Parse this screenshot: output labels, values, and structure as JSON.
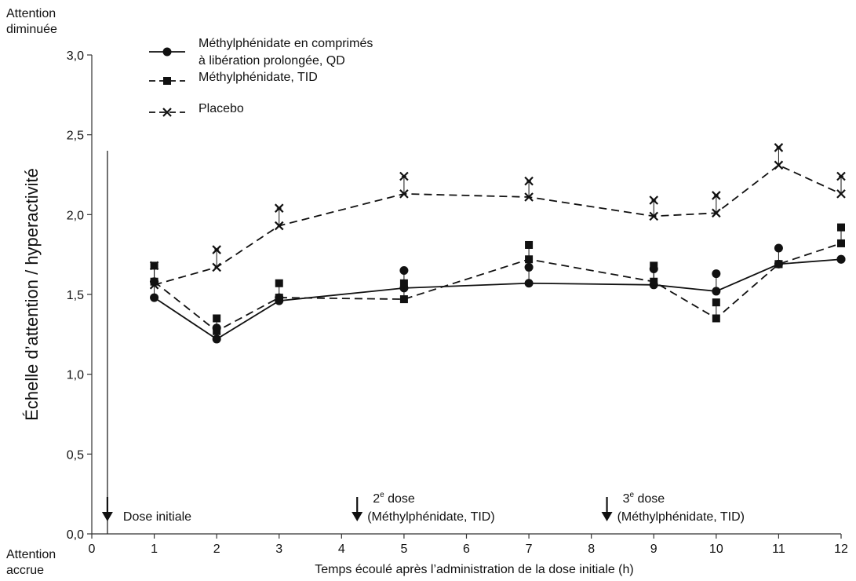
{
  "corner_labels": {
    "top": [
      "Attention",
      "diminuée"
    ],
    "bottom": [
      "Attention",
      "accrue"
    ]
  },
  "chart_data": {
    "type": "line",
    "title": "",
    "xlabel": "Temps écoulé après l’administration de la dose initiale (h)",
    "ylabel": "Échelle d’attention / hyperactivité",
    "xlim": [
      0,
      12
    ],
    "ylim": [
      0,
      3.0
    ],
    "x_ticks": [
      0,
      1,
      2,
      3,
      4,
      5,
      6,
      7,
      8,
      9,
      10,
      11,
      12
    ],
    "y_ticks": [
      "0,0",
      "0,5",
      "1,0",
      "1,5",
      "2,0",
      "2,5",
      "3,0"
    ],
    "y_tick_values": [
      0,
      0.5,
      1.0,
      1.5,
      2.0,
      2.5,
      3.0
    ],
    "grid": false,
    "legend_position": "top-left",
    "series": [
      {
        "name": "Méthylphénidate en comprimés à libération prolongée, QD",
        "legend_lines": [
          "Méthylphénidate en comprimés",
          "à libération prolongée, QD"
        ],
        "marker": "circle",
        "line_style": "solid",
        "x": [
          1,
          2,
          3,
          5,
          7,
          9,
          10,
          11,
          12
        ],
        "y": [
          1.48,
          1.22,
          1.46,
          1.54,
          1.57,
          1.56,
          1.52,
          1.69,
          1.72
        ],
        "error_upper": [
          1.58,
          1.29,
          1.48,
          1.65,
          1.67,
          1.66,
          1.63,
          1.79,
          1.72
        ]
      },
      {
        "name": "Méthylphénidate, TID",
        "legend_lines": [
          "Méthylphénidate, TID"
        ],
        "marker": "square",
        "line_style": "dashed",
        "x": [
          1,
          2,
          3,
          5,
          7,
          9,
          10,
          11,
          12
        ],
        "y": [
          1.58,
          1.27,
          1.48,
          1.47,
          1.72,
          1.58,
          1.35,
          1.69,
          1.82
        ],
        "error_upper": [
          1.68,
          1.35,
          1.57,
          1.57,
          1.81,
          1.68,
          1.45,
          1.69,
          1.92
        ]
      },
      {
        "name": "Placebo",
        "legend_lines": [
          "Placebo"
        ],
        "marker": "x",
        "line_style": "dashed",
        "x": [
          1,
          2,
          3,
          5,
          7,
          9,
          10,
          11,
          12
        ],
        "y": [
          1.56,
          1.67,
          1.93,
          2.13,
          2.11,
          1.99,
          2.01,
          2.31,
          2.13
        ],
        "error_upper": [
          1.68,
          1.78,
          2.04,
          2.24,
          2.21,
          2.09,
          2.12,
          2.42,
          2.24
        ]
      }
    ],
    "annotations": [
      {
        "x": 0.25,
        "lines": [
          "Dose initiale"
        ],
        "superscript": ""
      },
      {
        "x": 4.25,
        "lines": [
          "2",
          "dose",
          "(Méthylphénidate, TID)"
        ],
        "superscript": "e"
      },
      {
        "x": 8.25,
        "lines": [
          "3",
          "dose",
          "(Méthylphénidate, TID)"
        ],
        "superscript": "e"
      }
    ],
    "initial_dose_line_x": 0.25,
    "initial_dose_line_top": 2.4
  }
}
